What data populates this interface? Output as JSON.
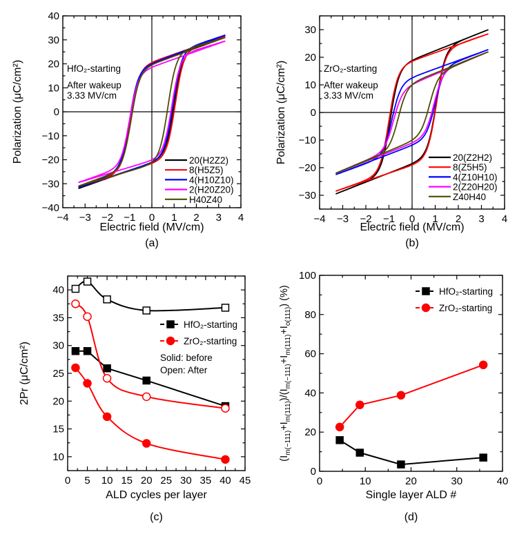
{
  "chart_data": [
    {
      "panel": "(a)",
      "type": "line",
      "xlabel": "Electric field (MV/cm)",
      "ylabel": "Polarization (μC/cm²)",
      "xlim": [
        -4,
        4
      ],
      "ylim": [
        -40,
        40
      ],
      "xticks": [
        -4,
        -3,
        -2,
        -1,
        0,
        1,
        2,
        3,
        4
      ],
      "yticks": [
        -40,
        -30,
        -20,
        -10,
        0,
        10,
        20,
        30,
        40
      ],
      "annotations": [
        "HfO₂-starting",
        "After wakeup",
        "3.33 MV/cm"
      ],
      "legend_position": "bottom-right",
      "field_range": [
        -3.3,
        3.3
      ],
      "series": [
        {
          "name": "20(H2Z2)",
          "color": "#000000",
          "P_at_max_field": 31.5,
          "P_at_min_field": -32,
          "Pr_pos": 20,
          "Pr_neg": -21,
          "Ec_neg": -1.0,
          "Ec_pos": 1.0
        },
        {
          "name": "8(H5Z5)",
          "color": "#ff0000",
          "P_at_max_field": 31.5,
          "P_at_min_field": -31.5,
          "Pr_pos": 20.5,
          "Pr_neg": -21.5,
          "Ec_neg": -0.95,
          "Ec_pos": 1.05
        },
        {
          "name": "4(H10Z10)",
          "color": "#0000ff",
          "P_at_max_field": 32,
          "P_at_min_field": -31.5,
          "Pr_pos": 20,
          "Pr_neg": -21,
          "Ec_neg": -1.0,
          "Ec_pos": 0.95
        },
        {
          "name": "2(H20Z20)",
          "color": "#ff00ff",
          "P_at_max_field": 29.5,
          "P_at_min_field": -29.5,
          "Pr_pos": 18.5,
          "Pr_neg": -20,
          "Ec_neg": -1.0,
          "Ec_pos": 0.9
        },
        {
          "name": "H40Z40",
          "color": "#4d4d00",
          "P_at_max_field": 31,
          "P_at_min_field": -31,
          "Pr_pos": 19.5,
          "Pr_neg": -21,
          "Ec_neg": -0.93,
          "Ec_pos": 0.72
        }
      ]
    },
    {
      "panel": "(b)",
      "type": "line",
      "xlabel": "Electric field (MV/cm)",
      "ylabel": "Polarization (μC/cm²)",
      "xlim": [
        -4,
        4
      ],
      "ylim": [
        -35,
        35
      ],
      "xticks": [
        -4,
        -3,
        -2,
        -1,
        0,
        1,
        2,
        3,
        4
      ],
      "yticks": [
        -30,
        -20,
        -10,
        0,
        10,
        20,
        30
      ],
      "annotations": [
        "ZrO₂-starting",
        "After wakeup",
        "3.33 MV/cm"
      ],
      "legend_position": "bottom-right",
      "field_range": [
        -3.3,
        3.3
      ],
      "series": [
        {
          "name": "20(Z2H2)",
          "color": "#000000",
          "P_at_max_field": 30,
          "P_at_min_field": -29.5,
          "Pr_pos": 18.8,
          "Pr_neg": -18.5,
          "Ec_neg": -0.95,
          "Ec_pos": 1.05
        },
        {
          "name": "8(Z5H5)",
          "color": "#ff0000",
          "P_at_max_field": 28.5,
          "P_at_min_field": -28.5,
          "Pr_pos": 18.5,
          "Pr_neg": -19,
          "Ec_neg": -1.0,
          "Ec_pos": 1.05
        },
        {
          "name": "4(Z10H10)",
          "color": "#0000ff",
          "P_at_max_field": 22.8,
          "P_at_min_field": -22.5,
          "Pr_pos": 12.5,
          "Pr_neg": -11.8,
          "Ec_neg": -0.87,
          "Ec_pos": 1.0
        },
        {
          "name": "2(Z20H20)",
          "color": "#ff00ff",
          "P_at_max_field": 22,
          "P_at_min_field": -22,
          "Pr_pos": 10,
          "Pr_neg": -11,
          "Ec_neg": -0.8,
          "Ec_pos": 0.95
        },
        {
          "name": "Z40H40",
          "color": "#4d4d00",
          "P_at_max_field": 22,
          "P_at_min_field": -22,
          "Pr_pos": 10,
          "Pr_neg": -10,
          "Ec_neg": -0.6,
          "Ec_pos": 0.75
        }
      ]
    },
    {
      "panel": "(c)",
      "type": "scatter",
      "xlabel": "ALD cycles per layer",
      "ylabel": "2Pr (μC/cm²)",
      "xlim": [
        0,
        45
      ],
      "ylim": [
        7.5,
        42.5
      ],
      "xticks": [
        0,
        5,
        10,
        15,
        20,
        25,
        30,
        35,
        40,
        45
      ],
      "yticks": [
        10,
        15,
        20,
        25,
        30,
        35,
        40
      ],
      "annotations": [
        "Solid: before",
        "Open: After"
      ],
      "legend": [
        "HfO₂-starting",
        "ZrO₂-starting"
      ],
      "legend_position": "right",
      "x": [
        2,
        5,
        10,
        20,
        40
      ],
      "series": [
        {
          "name": "HfO₂-starting",
          "state": "before",
          "marker": "square-filled",
          "color": "#000000",
          "values": [
            29.0,
            29.0,
            25.9,
            23.7,
            19.1
          ]
        },
        {
          "name": "HfO₂-starting",
          "state": "after",
          "marker": "square-open",
          "color": "#000000",
          "values": [
            40.2,
            41.5,
            38.3,
            36.3,
            36.8
          ]
        },
        {
          "name": "ZrO₂-starting",
          "state": "before",
          "marker": "circle-filled",
          "color": "#ff0000",
          "values": [
            26.0,
            23.2,
            17.2,
            12.4,
            9.5
          ]
        },
        {
          "name": "ZrO₂-starting",
          "state": "after",
          "marker": "circle-open",
          "color": "#ff0000",
          "values": [
            37.5,
            35.2,
            24.1,
            20.8,
            18.7
          ]
        }
      ]
    },
    {
      "panel": "(d)",
      "type": "line",
      "xlabel": "Single layer ALD #",
      "ylabel_parts": [
        [
          "(I",
          ""
        ],
        [
          "m(−111)",
          "sub"
        ],
        [
          "+I",
          ""
        ],
        [
          "m(111)",
          "sub"
        ],
        [
          ")/(I",
          ""
        ],
        [
          "m(−111)",
          "sub"
        ],
        [
          "+I",
          ""
        ],
        [
          "m(111)",
          "sub"
        ],
        [
          "+I",
          ""
        ],
        [
          "o(111)",
          "sub"
        ],
        [
          ") (%)",
          ""
        ]
      ],
      "xlim": [
        0,
        40
      ],
      "ylim": [
        0,
        100
      ],
      "xticks": [
        0,
        10,
        20,
        30,
        40
      ],
      "yticks": [
        0,
        20,
        40,
        60,
        80,
        100
      ],
      "legend_position": "top-right",
      "x": [
        4.4,
        8.8,
        17.8,
        35.8
      ],
      "series": [
        {
          "name": "HfO₂-starting",
          "marker": "square-filled",
          "color": "#000000",
          "values": [
            15.9,
            9.5,
            3.5,
            7.0
          ]
        },
        {
          "name": "ZrO₂-starting",
          "marker": "circle-filled",
          "color": "#ff0000",
          "values": [
            22.6,
            33.9,
            38.8,
            54.3
          ]
        }
      ]
    }
  ]
}
